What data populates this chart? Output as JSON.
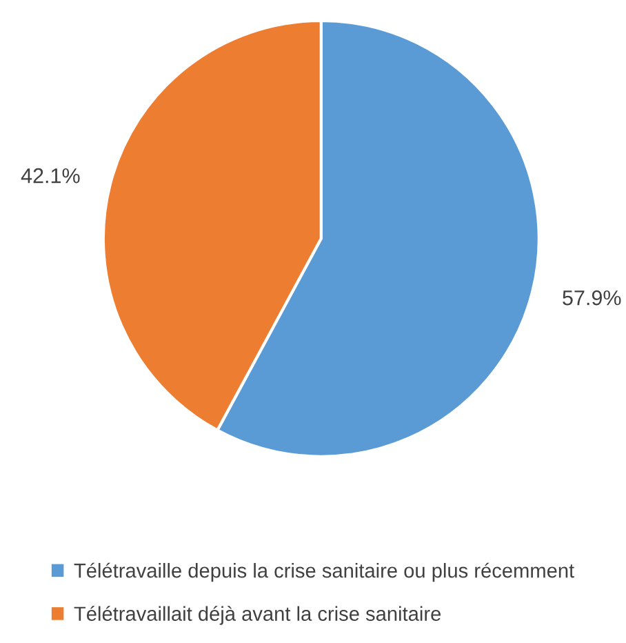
{
  "chart_data": {
    "type": "pie",
    "categories": [
      "Télétravaille depuis la crise sanitaire ou plus récemment",
      "Télétravaillait déjà avant la crise sanitaire"
    ],
    "values": [
      57.9,
      42.1
    ],
    "colors": [
      "#5b9bd5",
      "#ed7d31"
    ],
    "value_labels": [
      "57.9%",
      "42.1%"
    ],
    "legend": "bottom"
  }
}
